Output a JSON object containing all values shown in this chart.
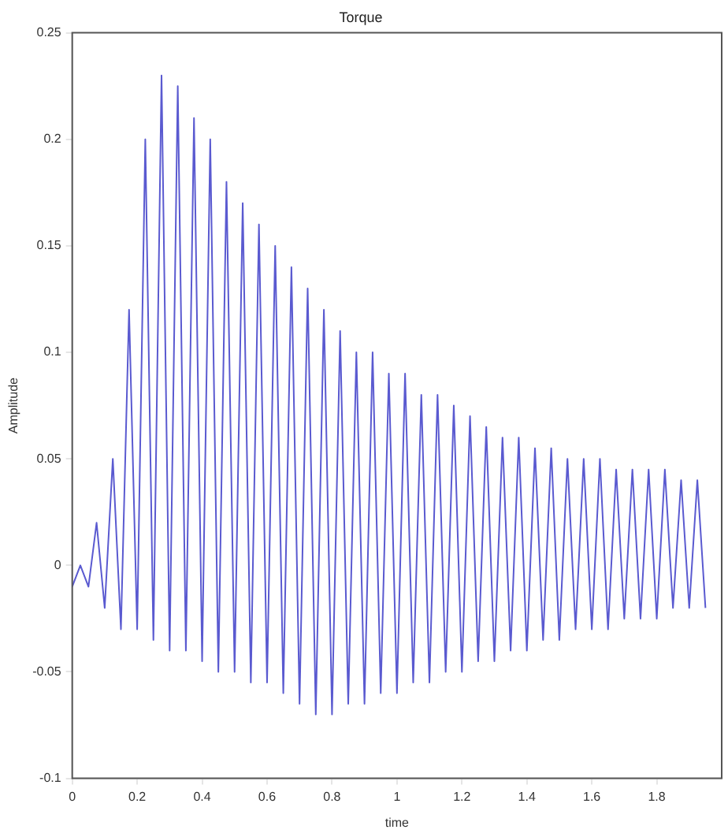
{
  "chart_data": {
    "type": "line",
    "title": "Torque",
    "xlabel": "time",
    "ylabel": "Amplitude",
    "x": [
      0,
      0.025,
      0.05,
      0.075,
      0.1,
      0.125,
      0.15,
      0.175,
      0.2,
      0.225,
      0.25,
      0.275,
      0.3,
      0.325,
      0.35,
      0.375,
      0.4,
      0.425,
      0.45,
      0.475,
      0.5,
      0.525,
      0.55,
      0.575,
      0.6,
      0.625,
      0.65,
      0.675,
      0.7,
      0.725,
      0.75,
      0.775,
      0.8,
      0.825,
      0.85,
      0.875,
      0.9,
      0.925,
      0.95,
      0.975,
      1,
      1.025,
      1.05,
      1.075,
      1.1,
      1.125,
      1.15,
      1.175,
      1.2,
      1.225,
      1.25,
      1.275,
      1.3,
      1.325,
      1.35,
      1.375,
      1.4,
      1.425,
      1.45,
      1.475,
      1.5,
      1.525,
      1.55,
      1.575,
      1.6,
      1.625,
      1.65,
      1.675,
      1.7,
      1.725,
      1.75,
      1.775,
      1.8,
      1.825,
      1.85,
      1.875,
      1.9,
      1.925,
      1.95
    ],
    "series": [
      {
        "color": "#5a5ad0",
        "values": [
          -0.01,
          0,
          -0.01,
          0.02,
          -0.02,
          0.05,
          -0.03,
          0.12,
          -0.03,
          0.2,
          -0.035,
          0.23,
          -0.04,
          0.225,
          -0.04,
          0.21,
          -0.045,
          0.2,
          -0.05,
          0.18,
          -0.05,
          0.17,
          -0.055,
          0.16,
          -0.055,
          0.15,
          -0.06,
          0.14,
          -0.065,
          0.13,
          -0.07,
          0.12,
          -0.07,
          0.11,
          -0.065,
          0.1,
          -0.065,
          0.1,
          -0.06,
          0.09,
          -0.06,
          0.09,
          -0.055,
          0.08,
          -0.055,
          0.08,
          -0.05,
          0.075,
          -0.05,
          0.07,
          -0.045,
          0.065,
          -0.045,
          0.06,
          -0.04,
          0.06,
          -0.04,
          0.055,
          -0.035,
          0.055,
          -0.035,
          0.05,
          -0.03,
          0.05,
          -0.03,
          0.05,
          -0.03,
          0.045,
          -0.025,
          0.045,
          -0.025,
          0.045,
          -0.025,
          0.045,
          -0.02,
          0.04,
          -0.02,
          0.04,
          -0.02
        ]
      }
    ],
    "xlim": [
      0,
      2
    ],
    "xticks": [
      0,
      0.2,
      0.4,
      0.6,
      0.8,
      1,
      1.2,
      1.4,
      1.6,
      1.8
    ],
    "ylim": [
      -0.1,
      0.25
    ],
    "yticks": [
      -0.1,
      -0.05,
      0,
      0.05,
      0.1,
      0.15,
      0.2,
      0.25
    ],
    "grid": false,
    "legend": false,
    "marker": "none",
    "line_style": "solid"
  }
}
